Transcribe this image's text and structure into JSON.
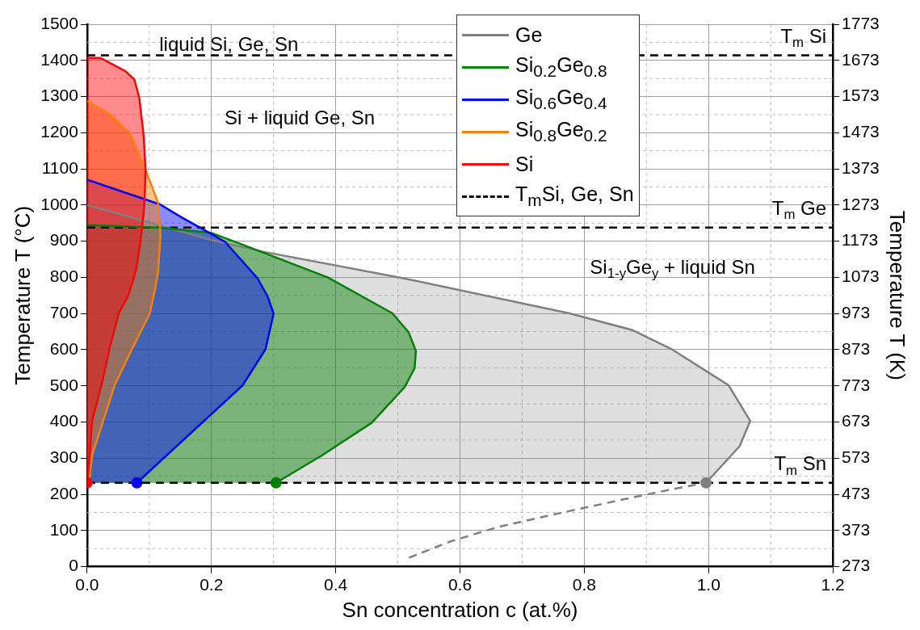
{
  "chart_data": {
    "type": "area",
    "xlabel": "Sn concentration c (at.%)",
    "ylabel": "Temperature T (°C)",
    "y2label": "Temperature T (K)",
    "xlim": [
      0,
      1.2
    ],
    "xticks": [
      {
        "value": 0,
        "label": "0.0"
      },
      {
        "value": 0.2,
        "label": "0.2"
      },
      {
        "value": 0.4,
        "label": "0.4"
      },
      {
        "value": 0.6,
        "label": "0.6"
      },
      {
        "value": 0.8,
        "label": "0.8"
      },
      {
        "value": 1,
        "label": "1.0"
      },
      {
        "value": 1.2,
        "label": "1.2"
      }
    ],
    "ylim": [
      0,
      1500
    ],
    "yticks": [
      0,
      100,
      200,
      300,
      400,
      500,
      600,
      700,
      800,
      900,
      1000,
      1100,
      1200,
      1300,
      1400,
      1500
    ],
    "y2lim": [
      273,
      1773
    ],
    "y2ticks": [
      273,
      373,
      473,
      573,
      673,
      773,
      873,
      973,
      1073,
      1173,
      1273,
      1373,
      1473,
      1573,
      1673,
      1773
    ],
    "grid": true,
    "legend": "top right",
    "series": [
      {
        "name": "Ge",
        "color": "#808080",
        "x": [
          0,
          0.1,
          0.2,
          0.283,
          0.502,
          0.775,
          0.878,
          0.94,
          1.032,
          1.067,
          1.05,
          0.996
        ],
        "values": [
          1000,
          952,
          903,
          871,
          800,
          701,
          654,
          602,
          502,
          403,
          333,
          232
        ]
      },
      {
        "name": "Si$_{0.2}$Ge$_{0.8}$",
        "color": "#008000",
        "x": [
          0,
          0.12,
          0.2,
          0.272,
          0.387,
          0.491,
          0.517,
          0.529,
          0.527,
          0.511,
          0.458,
          0.378,
          0.304
        ],
        "values": [
          945,
          937,
          923,
          876,
          800,
          701,
          649,
          597,
          549,
          497,
          398,
          308,
          232
        ]
      },
      {
        "name": "Si$_{0.6}$Ge$_{0.4}$",
        "color": "#0000ff",
        "x": [
          0,
          0.117,
          0.152,
          0.202,
          0.222,
          0.274,
          0.29,
          0.3,
          0.287,
          0.25,
          0.08
        ],
        "values": [
          1070,
          1002,
          966,
          918,
          898,
          798,
          749,
          700,
          601,
          501,
          232
        ]
      },
      {
        "name": "Si$_{0.8}$Ge$_{0.2}$",
        "color": "#ff8000",
        "x": [
          0,
          0.036,
          0.069,
          0.091,
          0.114,
          0.118,
          0.114,
          0.109,
          0.101,
          0.071,
          0.044,
          0.026,
          0.008,
          0.003
        ],
        "values": [
          1288,
          1252,
          1199,
          1110,
          1007,
          918,
          813,
          766,
          701,
          598,
          501,
          404,
          308,
          232
        ]
      },
      {
        "name": "Si",
        "color": "#ff0000",
        "x": [
          0,
          0.021,
          0.061,
          0.076,
          0.084,
          0.091,
          0.094,
          0.092,
          0.086,
          0.079,
          0.066,
          0.051,
          0.036,
          0.024,
          0.008,
          0.004,
          0
        ],
        "values": [
          1407,
          1407,
          1371,
          1347,
          1295,
          1191,
          1094,
          998,
          902,
          822,
          749,
          701,
          604,
          509,
          404,
          308,
          232
        ]
      },
      {
        "type": "line",
        "color": "#808080",
        "line_style": "dashed",
        "marker": "none",
        "x": [
          0.518,
          0.585,
          0.662,
          0.763,
          0.852,
          0.941,
          0.996
        ],
        "values": [
          25,
          70,
          110,
          149,
          182,
          214,
          232
        ]
      },
      {
        "type": "scatter",
        "marker": "circle",
        "color": "#ff0000",
        "colors": [
          "#808080",
          "#008000",
          "#0000ff",
          "#ff0000"
        ],
        "x": [
          0.996,
          0.304,
          0.08,
          0
        ],
        "values": [
          232,
          232,
          232,
          232
        ]
      }
    ],
    "ref_lines": [
      {
        "axis": "y",
        "value": 1414,
        "label": "T$_{m}$ Si",
        "color": "#000000",
        "line_style": "dashed"
      },
      {
        "axis": "y",
        "value": 938,
        "label": "T$_{m}$ Ge",
        "color": "#000000",
        "line_style": "dashed"
      },
      {
        "axis": "y",
        "value": 232,
        "label": "T$_{m}$ Sn",
        "color": "#000000",
        "line_style": "dashed"
      }
    ],
    "annotations": [
      "T$_{m}$Si, Ge, Sn",
      "liquid Si, Ge, Sn",
      "Si + liquid Ge, Sn",
      "Si$_{1-y}$Ge$_{y}$ + liquid Sn"
    ]
  }
}
